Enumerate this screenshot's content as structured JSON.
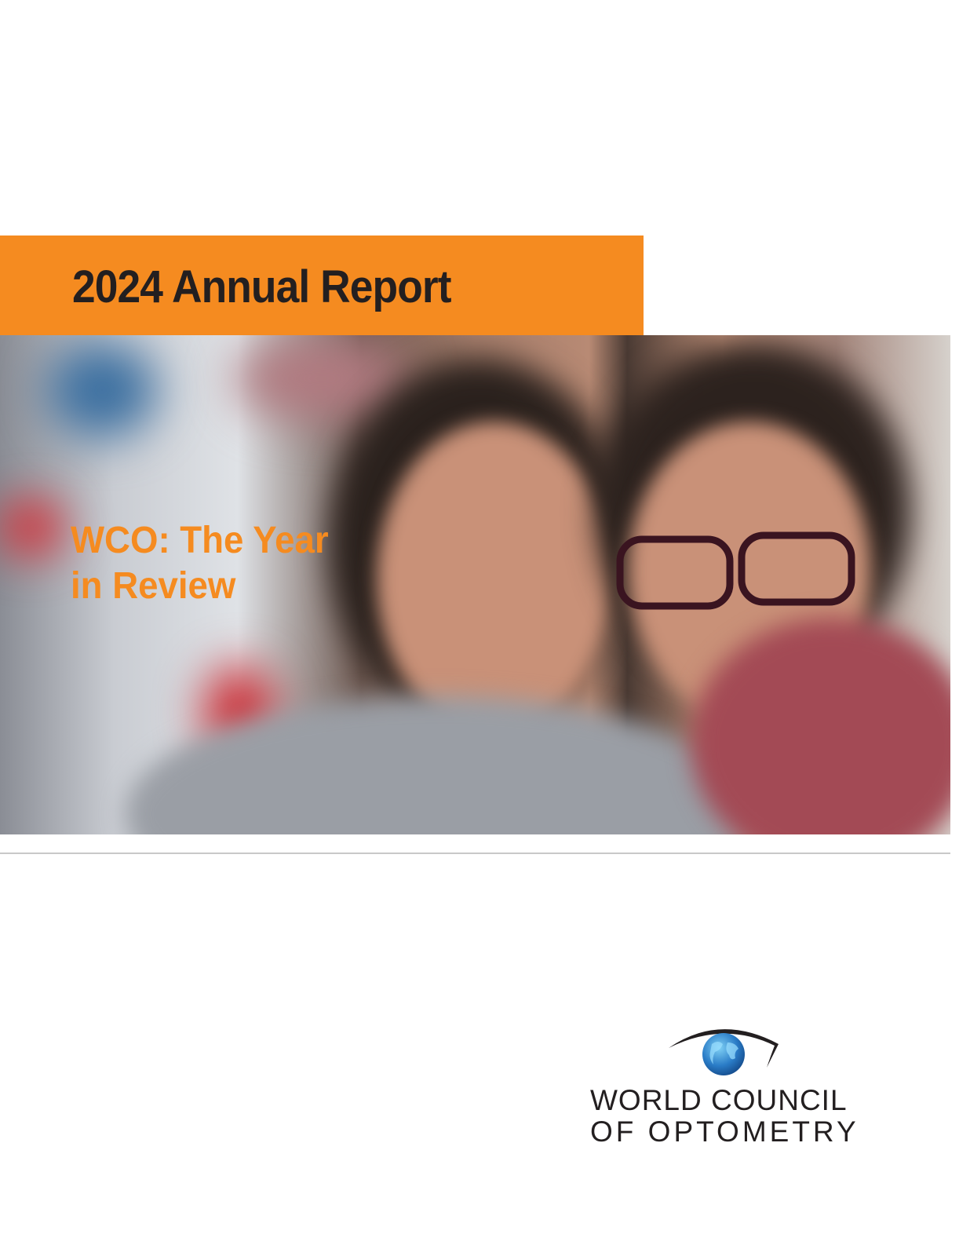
{
  "cover": {
    "title": "2024 Annual Report",
    "subtitle_line1": "WCO: The Year",
    "subtitle_line2": "in Review",
    "photo": "two smiling people, child wearing glasses",
    "colors": {
      "accent": "#f58b20",
      "title_text": "#231f20",
      "globe": "#2a7cc7"
    }
  },
  "logo": {
    "line1": "WORLD COUNCIL",
    "line2": "OF OPTOMETRY",
    "icon": "eye-globe-icon"
  }
}
